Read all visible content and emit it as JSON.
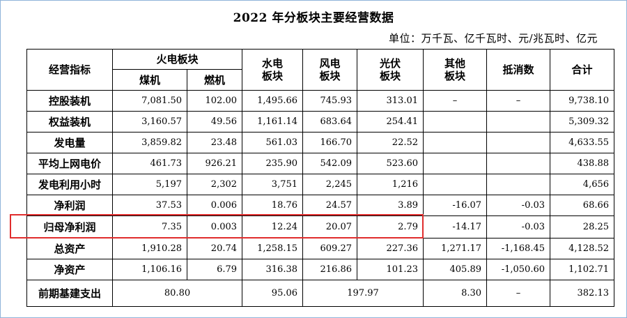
{
  "title": "2022 年分板块主要经营数据",
  "unit": "单位：万千瓦、亿千瓦时、元/兆瓦时、亿元",
  "headers": {
    "indicator": "经营指标",
    "thermal": "火电板块",
    "coal": "煤机",
    "gas": "燃机",
    "hydro_1": "水电",
    "hydro_2": "板块",
    "wind_1": "风电",
    "wind_2": "板块",
    "solar_1": "光伏",
    "solar_2": "板块",
    "other_1": "其他",
    "other_2": "板块",
    "offset": "抵消数",
    "total": "合计"
  },
  "rows": [
    {
      "label": "控股装机",
      "coal": "7,081.50",
      "gas": "102.00",
      "hydro": "1,495.66",
      "wind": "745.93",
      "solar": "313.01",
      "other": "–",
      "offset": "–",
      "total": "9,738.10"
    },
    {
      "label": "权益装机",
      "coal": "3,160.57",
      "gas": "49.56",
      "hydro": "1,161.14",
      "wind": "683.64",
      "solar": "254.41",
      "other": "",
      "offset": "",
      "total": "5,309.32"
    },
    {
      "label": "发电量",
      "coal": "3,859.82",
      "gas": "23.48",
      "hydro": "561.03",
      "wind": "166.70",
      "solar": "22.52",
      "other": "",
      "offset": "",
      "total": "4,633.55"
    },
    {
      "label": "平均上网电价",
      "coal": "461.73",
      "gas": "926.21",
      "hydro": "235.90",
      "wind": "542.09",
      "solar": "523.60",
      "other": "",
      "offset": "",
      "total": "438.88"
    },
    {
      "label": "发电利用小时",
      "coal": "5,197",
      "gas": "2,302",
      "hydro": "3,751",
      "wind": "2,245",
      "solar": "1,216",
      "other": "",
      "offset": "",
      "total": "4,656"
    },
    {
      "label": "净利润",
      "coal": "37.53",
      "gas": "0.006",
      "hydro": "18.76",
      "wind": "24.57",
      "solar": "3.89",
      "other": "-16.07",
      "offset": "-0.03",
      "total": "68.66"
    },
    {
      "label": "归母净利润",
      "coal": "7.35",
      "gas": "0.003",
      "hydro": "12.24",
      "wind": "20.07",
      "solar": "2.79",
      "other": "-14.17",
      "offset": "-0.03",
      "total": "28.25"
    },
    {
      "label": "总资产",
      "coal": "1,910.28",
      "gas": "20.74",
      "hydro": "1,258.15",
      "wind": "609.27",
      "solar": "227.36",
      "other": "1,271.17",
      "offset": "-1,168.45",
      "total": "4,128.52"
    },
    {
      "label": "净资产",
      "coal": "1,106.16",
      "gas": "6.79",
      "hydro": "316.38",
      "wind": "216.86",
      "solar": "101.23",
      "other": "405.89",
      "offset": "-1,050.60",
      "total": "1,102.71"
    }
  ],
  "capex": {
    "label": "前期基建支出",
    "thermal": "80.80",
    "hydro": "95.06",
    "renewable": "197.97",
    "other": "8.30",
    "offset": "–",
    "total": "382.13"
  },
  "colors": {
    "highlight_box": "#e02d2d",
    "frame": "#8fb3d9"
  }
}
